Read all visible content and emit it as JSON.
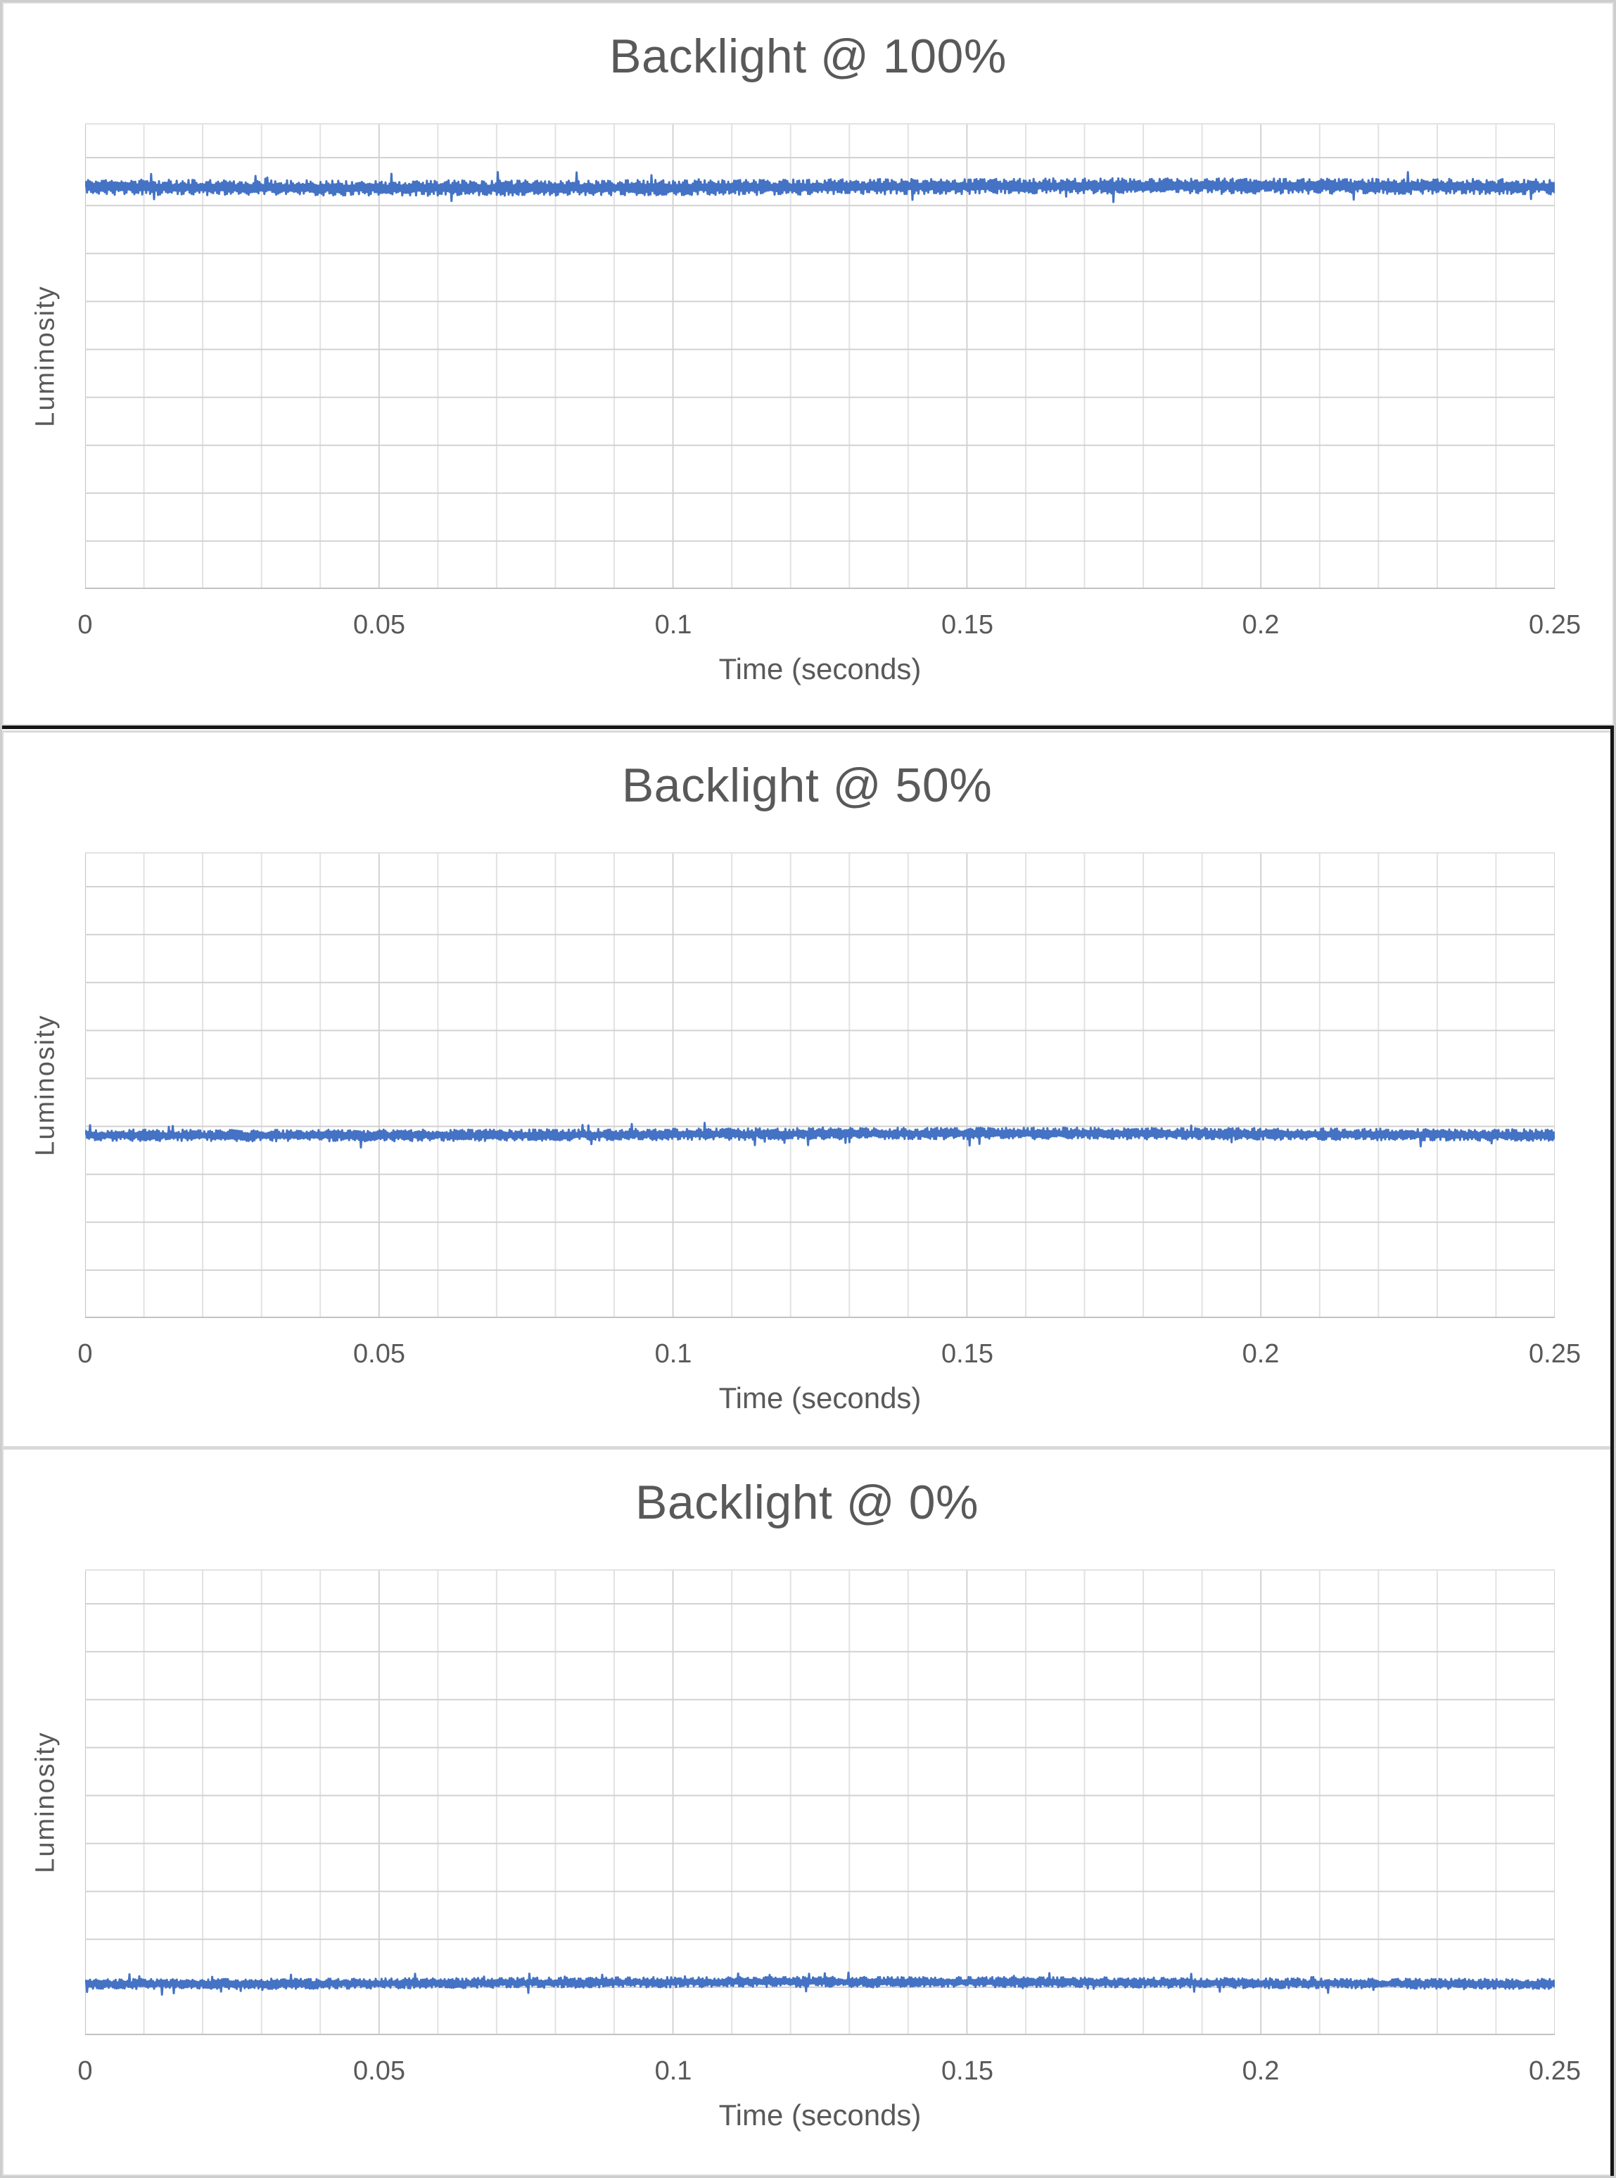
{
  "page": {
    "background": "#ffffff"
  },
  "style": {
    "title_color": "#595959",
    "axis_title_color": "#595959",
    "tick_label_color": "#595959",
    "grid_major_color": "#d2d2d2",
    "grid_minor_color": "#e2e2e2",
    "axis_line_color": "#c2c2c2",
    "chart_border_color": "#d9d9d9",
    "frame_border_color": "#161616",
    "line_color": "#4472C4"
  },
  "chart_data": [
    {
      "type": "line",
      "title": "Backlight @ 100%",
      "xlabel": "Time (seconds)",
      "ylabel": "Luminosity",
      "x_range": [
        0,
        0.25
      ],
      "x_ticks": [
        "0",
        "0.05",
        "0.1",
        "0.15",
        "0.2",
        "0.25"
      ],
      "x_minor_gridline_step": 0.01,
      "x_major_gridline_step": 0.05,
      "y_tick_labels_shown": false,
      "y_gridline_divisions": 10,
      "y_top_partial_division": 0.72,
      "grid": true,
      "legend": false,
      "series": [
        {
          "name": "Luminosity",
          "color": "#4472C4",
          "shape": "flat-noisy-line",
          "level_fraction_from_bottom": 0.863,
          "noise_amplitude_fraction": 0.0165,
          "spike_chance": 0.018,
          "seed": 11
        }
      ]
    },
    {
      "type": "line",
      "title": "Backlight @ 50%",
      "xlabel": "Time (seconds)",
      "ylabel": "Luminosity",
      "x_range": [
        0,
        0.25
      ],
      "x_ticks": [
        "0",
        "0.05",
        "0.1",
        "0.15",
        "0.2",
        "0.25"
      ],
      "x_minor_gridline_step": 0.01,
      "x_major_gridline_step": 0.05,
      "y_tick_labels_shown": false,
      "y_gridline_divisions": 10,
      "y_top_partial_division": 0.72,
      "grid": true,
      "legend": false,
      "series": [
        {
          "name": "Luminosity",
          "color": "#4472C4",
          "shape": "flat-noisy-line",
          "level_fraction_from_bottom": 0.394,
          "noise_amplitude_fraction": 0.0125,
          "spike_chance": 0.02,
          "seed": 22
        }
      ]
    },
    {
      "type": "line",
      "title": "Backlight @ 0%",
      "xlabel": "Time (seconds)",
      "ylabel": "Luminosity",
      "x_range": [
        0,
        0.25
      ],
      "x_ticks": [
        "0",
        "0.05",
        "0.1",
        "0.15",
        "0.2",
        "0.25"
      ],
      "x_minor_gridline_step": 0.01,
      "x_major_gridline_step": 0.05,
      "y_tick_labels_shown": false,
      "y_gridline_divisions": 10,
      "y_top_partial_division": 0.72,
      "grid": true,
      "legend": false,
      "series": [
        {
          "name": "Luminosity",
          "color": "#4472C4",
          "shape": "flat-noisy-line",
          "level_fraction_from_bottom": 0.112,
          "noise_amplitude_fraction": 0.011,
          "spike_chance": 0.025,
          "seed": 33
        }
      ]
    }
  ]
}
